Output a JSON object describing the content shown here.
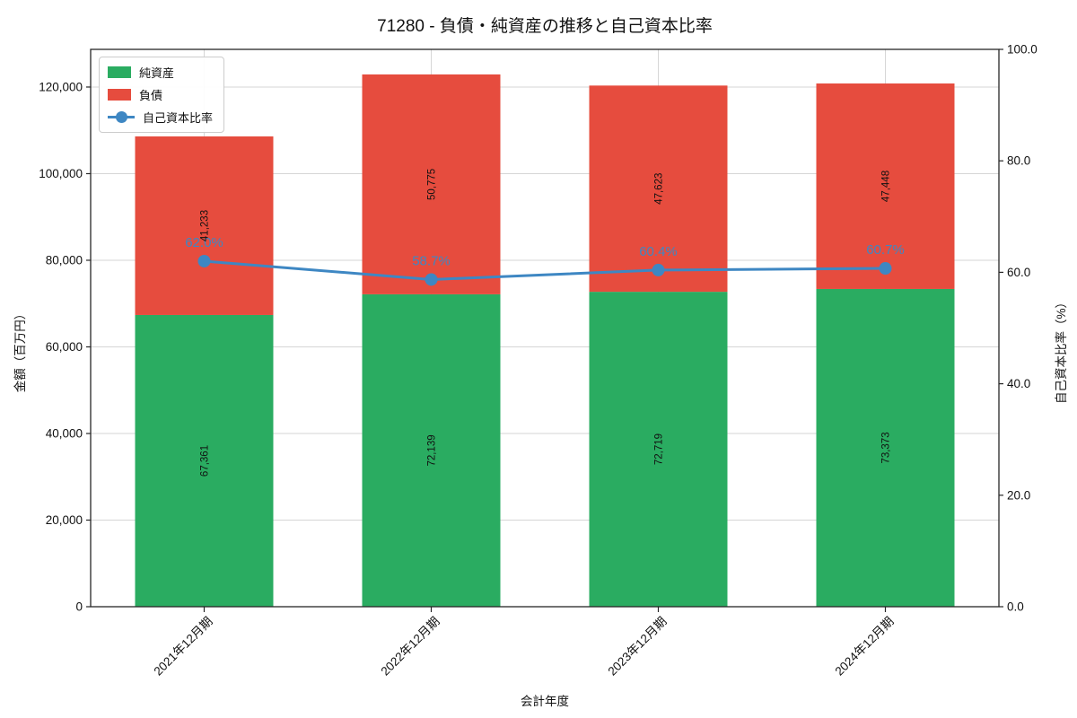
{
  "chart_data": {
    "type": "bar",
    "stacked": true,
    "title": "71280 - 負債・純資産の推移と自己資本比率",
    "xlabel": "会計年度",
    "ylabel_left": "金額（百万円）",
    "ylabel_right": "自己資本比率（%）",
    "categories": [
      "2021年12月期",
      "2022年12月期",
      "2023年12月期",
      "2024年12月期"
    ],
    "series": [
      {
        "name": "純資産",
        "type": "bar",
        "color": "#2aac61",
        "values": [
          67361,
          72139,
          72719,
          73373
        ],
        "labels": [
          "67,361",
          "72,139",
          "72,719",
          "73,373"
        ]
      },
      {
        "name": "負債",
        "type": "bar",
        "color": "#e64c3e",
        "values": [
          41233,
          50775,
          47623,
          47448
        ],
        "labels": [
          "41,233",
          "50,775",
          "47,623",
          "47,448"
        ]
      },
      {
        "name": "自己資本比率",
        "type": "line",
        "axis": "right",
        "color": "#3e87c3",
        "values": [
          62.0,
          58.7,
          60.4,
          60.7
        ],
        "labels": [
          "62.0%",
          "58.7%",
          "60.4%",
          "60.7%"
        ]
      }
    ],
    "left_axis": {
      "min": 0,
      "max": 128700,
      "ticks": [
        0,
        20000,
        40000,
        60000,
        80000,
        100000,
        120000
      ],
      "tick_labels": [
        "0",
        "20,000",
        "40,000",
        "60,000",
        "80,000",
        "100,000",
        "120,000"
      ]
    },
    "right_axis": {
      "min": 0,
      "max": 100,
      "ticks": [
        0,
        20,
        40,
        60,
        80,
        100
      ],
      "tick_labels": [
        "0.0",
        "20.0",
        "40.0",
        "60.0",
        "80.0",
        "100.0"
      ]
    },
    "grid": true,
    "legend_position": "upper left"
  }
}
